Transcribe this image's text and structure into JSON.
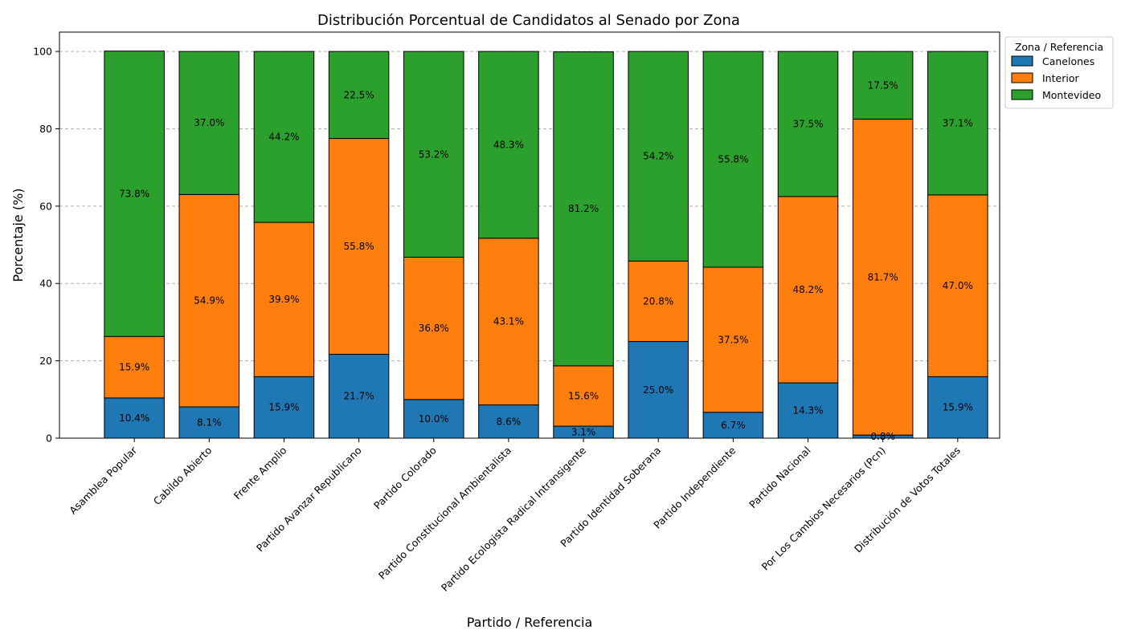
{
  "chart_data": {
    "type": "bar",
    "stacked": true,
    "title": "Distribución Porcentual de Candidatos al Senado por Zona",
    "xlabel": "Partido / Referencia",
    "ylabel": "Porcentaje (%)",
    "ylim": [
      0,
      105
    ],
    "yticks": [
      0,
      20,
      40,
      60,
      80,
      100
    ],
    "grid": "y-dashed",
    "legend": {
      "title": "Zona / Referencia",
      "placement": "outside-top-right"
    },
    "categories": [
      "Asamblea Popular",
      "Cabildo Abierto",
      "Frente Amplio",
      "Partido Avanzar Republicano",
      "Partido Colorado",
      "Partido Constitucional Ambientalista",
      "Partido Ecologista Radical Intransigente",
      "Partido Identidad Soberana",
      "Partido Independiente",
      "Partido Nacional",
      "Por Los Cambios Necesarios (Pcn)",
      "Distribución de Votos Totales"
    ],
    "series": [
      {
        "name": "Canelones",
        "color": "#1f77b4",
        "values": [
          10.4,
          8.1,
          15.9,
          21.7,
          10.0,
          8.6,
          3.1,
          25.0,
          6.7,
          14.3,
          0.8,
          15.9
        ],
        "labels": [
          "10.4%",
          "8.1%",
          "15.9%",
          "21.7%",
          "10.0%",
          "8.6%",
          "3.1%",
          "25.0%",
          "6.7%",
          "14.3%",
          "0.8%",
          "15.9%"
        ]
      },
      {
        "name": "Interior",
        "color": "#ff7f0e",
        "values": [
          15.9,
          54.9,
          39.9,
          55.8,
          36.8,
          43.1,
          15.6,
          20.8,
          37.5,
          48.2,
          81.7,
          47.0
        ],
        "labels": [
          "15.9%",
          "54.9%",
          "39.9%",
          "55.8%",
          "36.8%",
          "43.1%",
          "15.6%",
          "20.8%",
          "37.5%",
          "48.2%",
          "81.7%",
          "47.0%"
        ]
      },
      {
        "name": "Montevideo",
        "color": "#2ca02c",
        "values": [
          73.8,
          37.0,
          44.2,
          22.5,
          53.2,
          48.3,
          81.2,
          54.2,
          55.8,
          37.5,
          17.5,
          37.1
        ],
        "labels": [
          "73.8%",
          "37.0%",
          "44.2%",
          "22.5%",
          "53.2%",
          "48.3%",
          "81.2%",
          "54.2%",
          "55.8%",
          "37.5%",
          "17.5%",
          "37.1%"
        ]
      }
    ]
  }
}
